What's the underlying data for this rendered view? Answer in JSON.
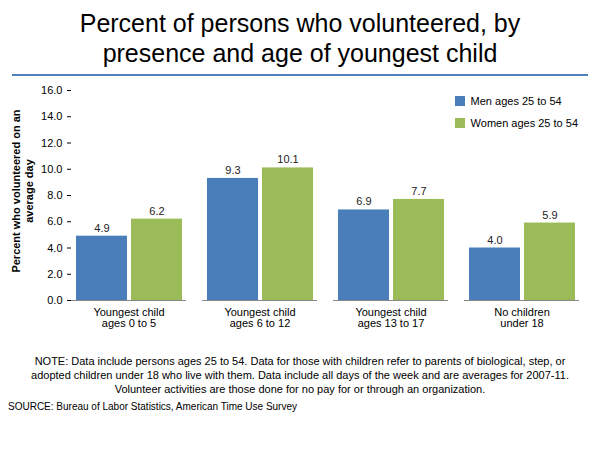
{
  "chart_data": {
    "type": "bar",
    "title": "Percent of persons who volunteered, by presence and age of youngest child",
    "y_label": "Percent who volunteered on an average day",
    "categories": [
      "Youngest child ages 0 to 5",
      "Youngest child ages 6 to 12",
      "Youngest child ages 13 to 17",
      "No children under 18"
    ],
    "series": [
      {
        "name": "Men ages 25 to 54",
        "color": "#4a7ebb",
        "values": [
          4.9,
          9.3,
          6.9,
          4.0
        ],
        "value_labels": [
          "4.9",
          "9.3",
          "6.9",
          "4.0"
        ]
      },
      {
        "name": "Women ages 25 to 54",
        "color": "#9bbb59",
        "values": [
          6.2,
          10.1,
          7.7,
          5.9
        ],
        "value_labels": [
          "6.2",
          "10.1",
          "7.7",
          "5.9"
        ]
      }
    ],
    "ylim": [
      0,
      16
    ],
    "yticks": [
      {
        "value": 0,
        "label": "0.0"
      },
      {
        "value": 2,
        "label": "2.0"
      },
      {
        "value": 4,
        "label": "4.0"
      },
      {
        "value": 6,
        "label": "6.0"
      },
      {
        "value": 8,
        "label": "8.0"
      },
      {
        "value": 10,
        "label": "10.0"
      },
      {
        "value": 12,
        "label": "12.0"
      },
      {
        "value": 14,
        "label": "14.0"
      },
      {
        "value": 16,
        "label": "16.0"
      }
    ],
    "grid": false,
    "legend": "top-right",
    "data_labels": true,
    "note": "NOTE: Data include persons ages 25 to 54. Data for those with children refer to parents of biological, step, or adopted children under 18 who live with them. Data include all days of the week and are averages for 2007-11. Volunteer activities are those done for no pay for or through an organization.",
    "source": "SOURCE: Bureau of Labor Statistics, American Time Use Survey"
  }
}
